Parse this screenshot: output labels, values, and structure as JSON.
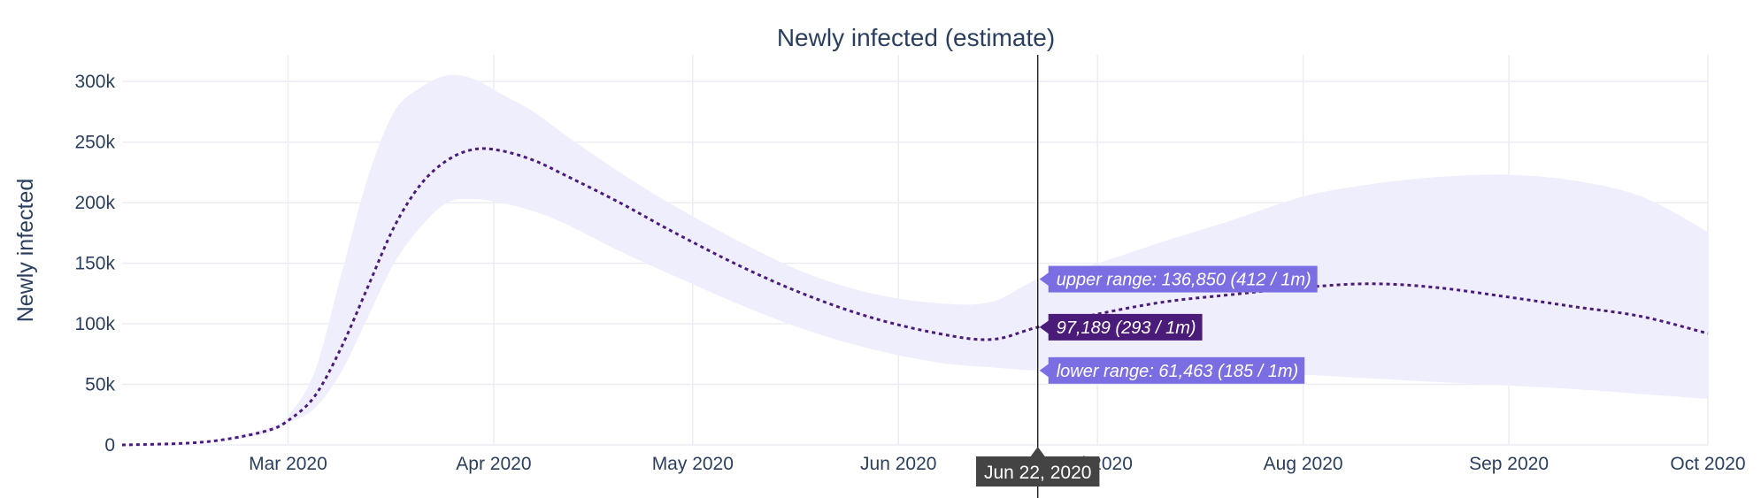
{
  "chart_data": {
    "type": "area",
    "title": "Newly infected (estimate)",
    "xlabel": "",
    "ylabel": "Newly infected",
    "xlim": [
      "2020-02-05",
      "2020-10-01"
    ],
    "ylim": [
      0,
      322000
    ],
    "grid": true,
    "x_ticks": [
      {
        "date": "2020-03-01",
        "label": "Mar 2020"
      },
      {
        "date": "2020-04-01",
        "label": "Apr 2020"
      },
      {
        "date": "2020-05-01",
        "label": "May 2020"
      },
      {
        "date": "2020-06-01",
        "label": "Jun 2020"
      },
      {
        "date": "2020-07-01",
        "label": "Jul 2020"
      },
      {
        "date": "2020-08-01",
        "label": "Aug 2020"
      },
      {
        "date": "2020-09-01",
        "label": "Sep 2020"
      },
      {
        "date": "2020-10-01",
        "label": "Oct 2020"
      }
    ],
    "y_ticks": [
      {
        "value": 0,
        "label": "0"
      },
      {
        "value": 50000,
        "label": "50k"
      },
      {
        "value": 100000,
        "label": "100k"
      },
      {
        "value": 150000,
        "label": "150k"
      },
      {
        "value": 200000,
        "label": "200k"
      },
      {
        "value": 250000,
        "label": "250k"
      },
      {
        "value": 300000,
        "label": "300k"
      }
    ],
    "x": [
      "2020-02-05",
      "2020-02-15",
      "2020-02-21",
      "2020-02-27",
      "2020-03-01",
      "2020-03-05",
      "2020-03-09",
      "2020-03-13",
      "2020-03-17",
      "2020-03-21",
      "2020-03-25",
      "2020-03-29",
      "2020-04-02",
      "2020-04-07",
      "2020-04-12",
      "2020-04-20",
      "2020-04-28",
      "2020-05-08",
      "2020-05-18",
      "2020-05-28",
      "2020-06-07",
      "2020-06-15",
      "2020-06-22",
      "2020-07-01",
      "2020-07-11",
      "2020-07-21",
      "2020-08-01",
      "2020-08-11",
      "2020-08-21",
      "2020-09-01",
      "2020-09-11",
      "2020-09-21",
      "2020-10-01"
    ],
    "colors": {
      "line": "#4b1b7a",
      "band": "#efeefd",
      "label_bg": "#7b6ee3",
      "label_bg_main": "#4b1b7a",
      "xhover_bg": "#444444"
    },
    "series": [
      {
        "name": "",
        "values": [
          0,
          1500,
          5000,
          12000,
          20000,
          40000,
          80000,
          130000,
          180000,
          215000,
          235000,
          244000,
          243000,
          235000,
          222000,
          200000,
          176000,
          148000,
          124000,
          105000,
          92000,
          87000,
          97189,
          108000,
          118000,
          124000,
          130000,
          133000,
          130000,
          122000,
          114000,
          106000,
          92000
        ]
      },
      {
        "name": "upper range",
        "values": [
          0,
          1800,
          6000,
          14000,
          24000,
          60000,
          140000,
          220000,
          275000,
          295000,
          305000,
          302000,
          290000,
          275000,
          255000,
          225000,
          198000,
          168000,
          142000,
          125000,
          117000,
          118000,
          136850,
          150000,
          168000,
          185000,
          205000,
          215000,
          221000,
          223000,
          218000,
          205000,
          176000
        ]
      },
      {
        "name": "lower range",
        "values": [
          0,
          1200,
          4000,
          10000,
          18000,
          30000,
          60000,
          105000,
          150000,
          180000,
          200000,
          203000,
          200000,
          193000,
          182000,
          160000,
          140000,
          116000,
          95000,
          79000,
          68000,
          64000,
          61463,
          62000,
          61000,
          60000,
          58000,
          55000,
          52000,
          49000,
          46000,
          42000,
          38000
        ]
      }
    ],
    "hover": {
      "date": "2020-06-22",
      "x_label": "Jun 22, 2020",
      "upper_text": "upper range: 136,850 (412 / 1m)",
      "main_text": "97,189 (293 / 1m)",
      "lower_text": "lower range: 61,463 (185 / 1m)"
    }
  }
}
